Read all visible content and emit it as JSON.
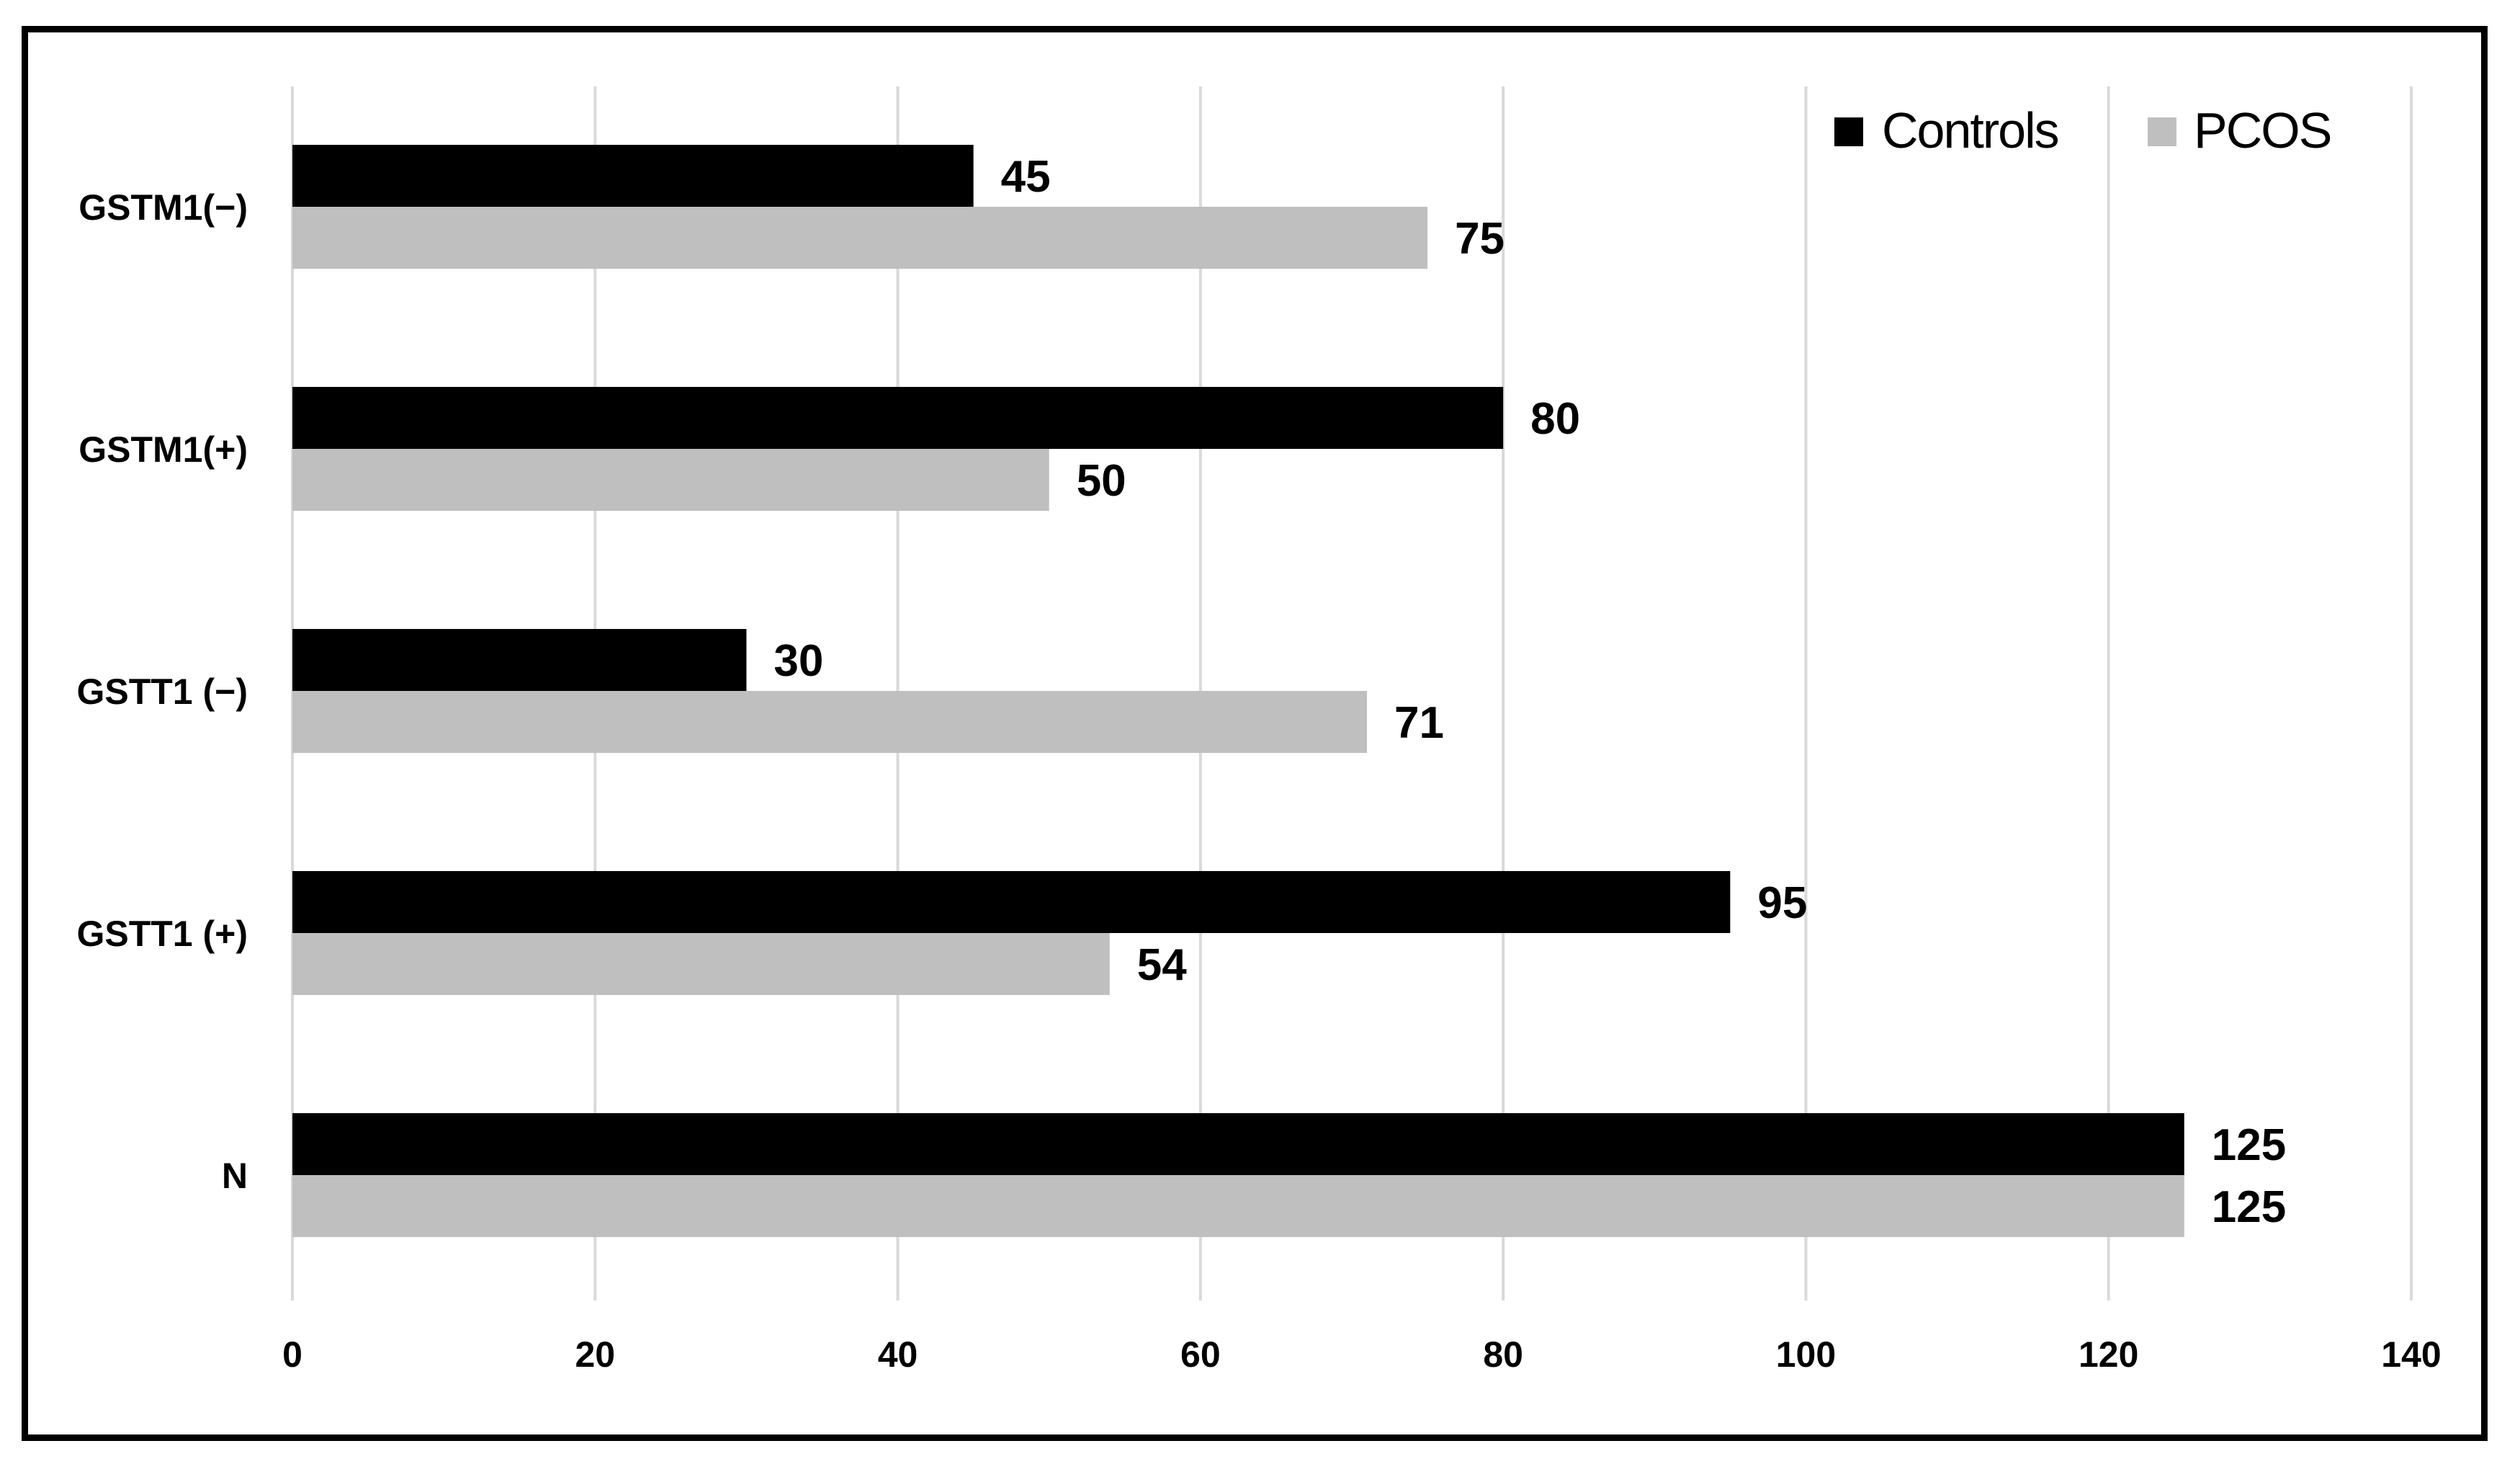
{
  "chart_data": {
    "type": "bar",
    "orientation": "horizontal",
    "title": "",
    "xlabel": "",
    "ylabel": "",
    "categories": [
      "GSTM1(−)",
      "GSTM1(+)",
      "GSTT1 (−)",
      "GSTT1 (+)",
      "N"
    ],
    "series": [
      {
        "name": "Controls",
        "color": "#000000",
        "values": [
          45,
          80,
          30,
          95,
          125
        ]
      },
      {
        "name": "PCOS",
        "color": "#bfbfbf",
        "values": [
          75,
          50,
          71,
          54,
          125
        ]
      }
    ],
    "xlim": [
      0,
      140
    ],
    "xticks": [
      0,
      20,
      40,
      60,
      80,
      100,
      120,
      140
    ],
    "grid": "vertical",
    "legend_position": "top-right",
    "data_labels": true
  }
}
